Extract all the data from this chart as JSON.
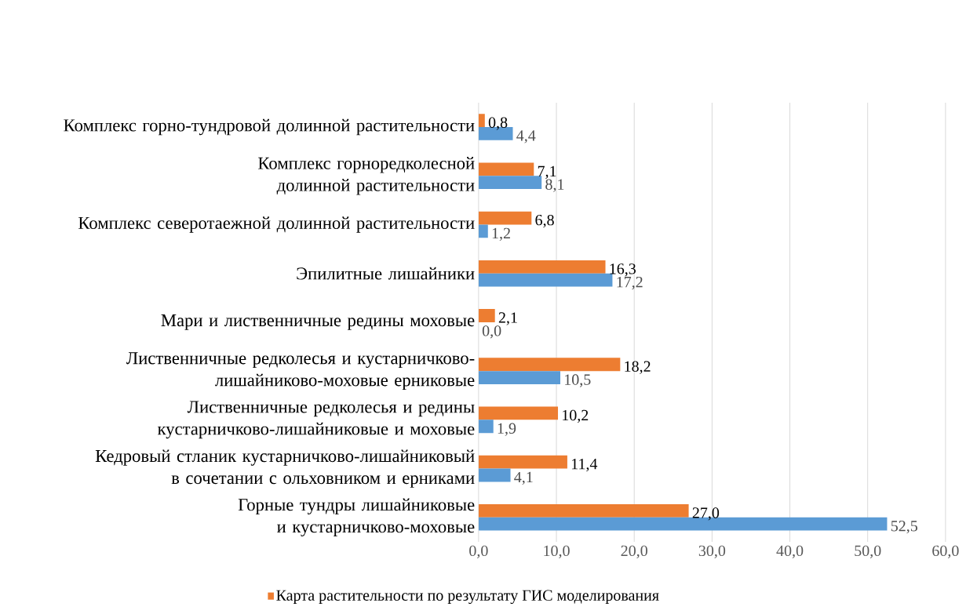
{
  "chart_data": {
    "type": "bar",
    "orientation": "horizontal",
    "categories": [
      "Комплекс горно-тундровой долинной растительности",
      "Комплекс горноредколесной долинной растительности",
      "Комплекс северотаежной долинной растительности",
      "Эпилитные лишайники",
      "Мари и лиственничные редины моховые",
      "Лиственничные редколесья и кустарничково-лишайниково-моховые ерниковые",
      "Лиственничные редколесья и редины кустарничково-лишайниковые и моховые",
      "Кедровый стланик кустарничково-лишайниковый в сочетании с ольховником и ерниками",
      "Горные тундры лишайниковые и кустарничково-моховые"
    ],
    "series": [
      {
        "name": "Карта растительности по результату ГИС моделирования",
        "color": "#ed7d31",
        "values": [
          0.8,
          7.1,
          6.8,
          16.3,
          2.1,
          18.2,
          10.2,
          11.4,
          27.0
        ],
        "value_labels": [
          "0,8",
          "7,1",
          "6,8",
          "16,3",
          "2,1",
          "18,2",
          "10,2",
          "11,4",
          "27,0"
        ]
      },
      {
        "color": "#5b9bd5",
        "values": [
          4.4,
          8.1,
          1.2,
          17.2,
          0.0,
          10.5,
          1.9,
          4.1,
          52.5
        ],
        "value_labels": [
          "4,4",
          "8,1",
          "1,2",
          "17,2",
          "0,0",
          "10,5",
          "1,9",
          "4,1",
          "52,5"
        ]
      }
    ],
    "xlim": [
      0,
      60
    ],
    "xticks": [
      {
        "value": 0,
        "label": "0,0"
      },
      {
        "value": 10,
        "label": "10,0"
      },
      {
        "value": 20,
        "label": "20,0"
      },
      {
        "value": 30,
        "label": "30,0"
      },
      {
        "value": 40,
        "label": "40,0"
      },
      {
        "value": 50,
        "label": "50,0"
      },
      {
        "value": 60,
        "label": "60,0"
      }
    ],
    "grid": "x",
    "legend": "bottom"
  }
}
